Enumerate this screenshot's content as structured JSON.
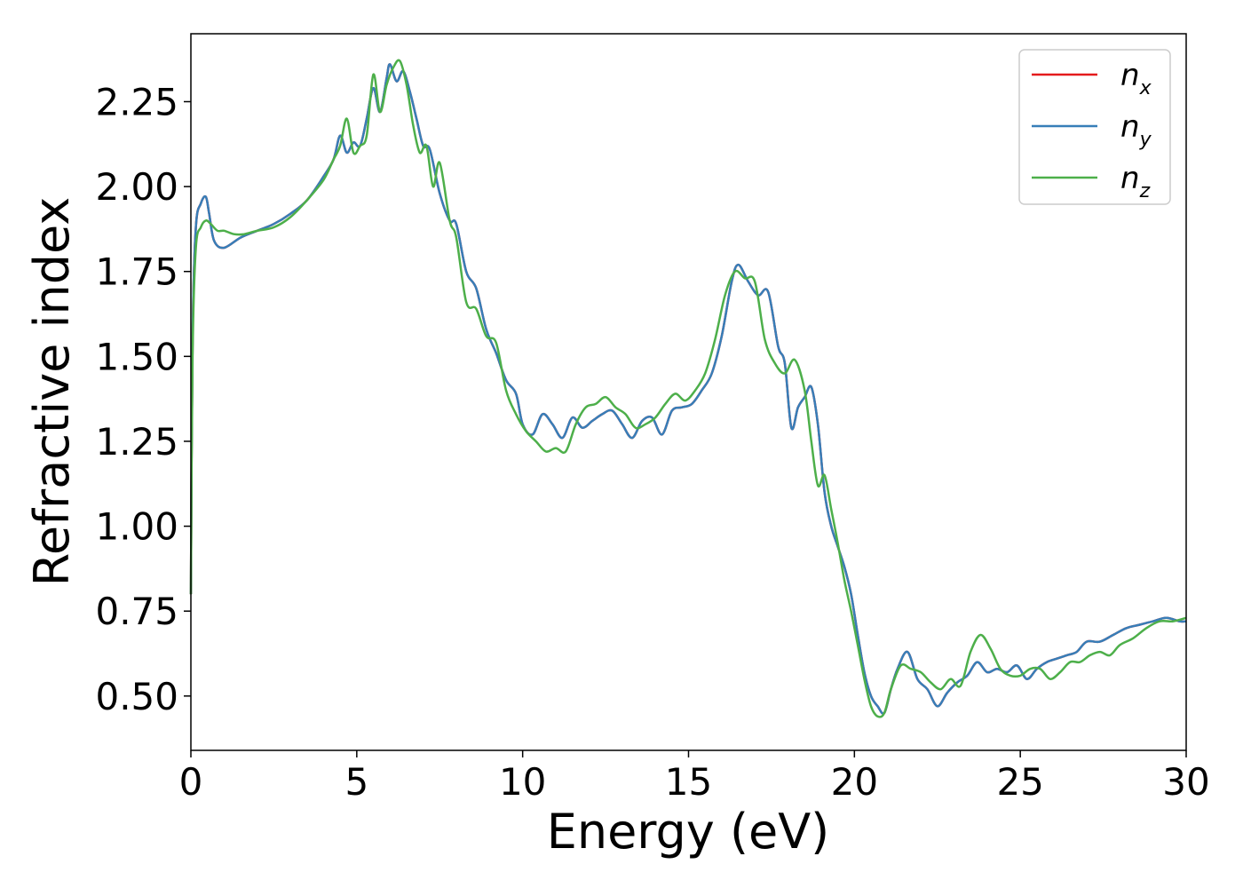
{
  "chart_data": {
    "type": "line",
    "xlabel": "Energy (eV)",
    "ylabel": "Refractive index",
    "xlim": [
      0,
      30
    ],
    "ylim": [
      0.34,
      2.45
    ],
    "xticks": [
      0,
      5,
      10,
      15,
      20,
      25,
      30
    ],
    "xtick_labels": [
      "0",
      "5",
      "10",
      "15",
      "20",
      "25",
      "30"
    ],
    "yticks": [
      0.5,
      0.75,
      1.0,
      1.25,
      1.5,
      1.75,
      2.0,
      2.25
    ],
    "ytick_labels": [
      "0.50",
      "0.75",
      "1.00",
      "1.25",
      "1.50",
      "1.75",
      "2.00",
      "2.25"
    ],
    "grid": false,
    "legend_position": "top-right",
    "series": [
      {
        "name": "n_x",
        "label_main": "n",
        "label_sub": "x",
        "color": "#e41a1c",
        "x": [
          0,
          0.05,
          0.15,
          0.3,
          0.45,
          0.55,
          0.7,
          1.0,
          1.5,
          2.0,
          2.5,
          3.0,
          3.5,
          4.0,
          4.3,
          4.5,
          4.7,
          4.9,
          5.1,
          5.3,
          5.5,
          5.7,
          5.9,
          6.0,
          6.2,
          6.4,
          6.6,
          6.8,
          7.0,
          7.2,
          7.5,
          7.8,
          8.0,
          8.3,
          8.6,
          8.9,
          9.2,
          9.5,
          9.8,
          10.0,
          10.3,
          10.6,
          10.9,
          11.2,
          11.5,
          11.8,
          12.1,
          12.4,
          12.7,
          13.0,
          13.3,
          13.6,
          13.9,
          14.2,
          14.5,
          14.8,
          15.1,
          15.4,
          15.7,
          16.0,
          16.3,
          16.5,
          16.8,
          17.1,
          17.4,
          17.7,
          17.9,
          18.1,
          18.3,
          18.5,
          18.7,
          18.9,
          19.1,
          19.3,
          19.5,
          19.7,
          19.9,
          20.1,
          20.3,
          20.5,
          20.7,
          20.9,
          21.1,
          21.3,
          21.6,
          21.9,
          22.2,
          22.5,
          22.8,
          23.1,
          23.4,
          23.7,
          24.0,
          24.3,
          24.6,
          24.9,
          25.2,
          25.5,
          25.8,
          26.1,
          26.4,
          26.7,
          27.0,
          27.4,
          27.8,
          28.2,
          28.6,
          29.0,
          29.4,
          29.8,
          30.0
        ],
        "values": [
          0.8,
          1.55,
          1.88,
          1.95,
          1.97,
          1.92,
          1.84,
          1.82,
          1.85,
          1.87,
          1.89,
          1.92,
          1.96,
          2.03,
          2.08,
          2.15,
          2.1,
          2.13,
          2.12,
          2.2,
          2.29,
          2.22,
          2.32,
          2.36,
          2.31,
          2.34,
          2.28,
          2.2,
          2.12,
          2.11,
          1.98,
          1.9,
          1.89,
          1.75,
          1.7,
          1.58,
          1.51,
          1.43,
          1.39,
          1.3,
          1.27,
          1.33,
          1.3,
          1.26,
          1.32,
          1.29,
          1.31,
          1.33,
          1.34,
          1.3,
          1.26,
          1.31,
          1.32,
          1.27,
          1.34,
          1.35,
          1.36,
          1.4,
          1.45,
          1.56,
          1.72,
          1.77,
          1.72,
          1.68,
          1.69,
          1.53,
          1.48,
          1.29,
          1.35,
          1.38,
          1.41,
          1.3,
          1.1,
          1.0,
          0.94,
          0.88,
          0.8,
          0.68,
          0.57,
          0.5,
          0.47,
          0.45,
          0.52,
          0.58,
          0.63,
          0.55,
          0.52,
          0.47,
          0.51,
          0.54,
          0.56,
          0.6,
          0.57,
          0.58,
          0.57,
          0.59,
          0.55,
          0.58,
          0.6,
          0.61,
          0.62,
          0.63,
          0.66,
          0.66,
          0.68,
          0.7,
          0.71,
          0.72,
          0.73,
          0.72,
          0.72
        ]
      },
      {
        "name": "n_y",
        "label_main": "n",
        "label_sub": "y",
        "color": "#377eb8",
        "x": [
          0,
          0.05,
          0.15,
          0.3,
          0.45,
          0.55,
          0.7,
          1.0,
          1.5,
          2.0,
          2.5,
          3.0,
          3.5,
          4.0,
          4.3,
          4.5,
          4.7,
          4.9,
          5.1,
          5.3,
          5.5,
          5.7,
          5.9,
          6.0,
          6.2,
          6.4,
          6.6,
          6.8,
          7.0,
          7.2,
          7.5,
          7.8,
          8.0,
          8.3,
          8.6,
          8.9,
          9.2,
          9.5,
          9.8,
          10.0,
          10.3,
          10.6,
          10.9,
          11.2,
          11.5,
          11.8,
          12.1,
          12.4,
          12.7,
          13.0,
          13.3,
          13.6,
          13.9,
          14.2,
          14.5,
          14.8,
          15.1,
          15.4,
          15.7,
          16.0,
          16.3,
          16.5,
          16.8,
          17.1,
          17.4,
          17.7,
          17.9,
          18.1,
          18.3,
          18.5,
          18.7,
          18.9,
          19.1,
          19.3,
          19.5,
          19.7,
          19.9,
          20.1,
          20.3,
          20.5,
          20.7,
          20.9,
          21.1,
          21.3,
          21.6,
          21.9,
          22.2,
          22.5,
          22.8,
          23.1,
          23.4,
          23.7,
          24.0,
          24.3,
          24.6,
          24.9,
          25.2,
          25.5,
          25.8,
          26.1,
          26.4,
          26.7,
          27.0,
          27.4,
          27.8,
          28.2,
          28.6,
          29.0,
          29.4,
          29.8,
          30.0
        ],
        "values": [
          0.8,
          1.55,
          1.88,
          1.95,
          1.97,
          1.92,
          1.84,
          1.82,
          1.85,
          1.87,
          1.89,
          1.92,
          1.96,
          2.03,
          2.08,
          2.15,
          2.1,
          2.13,
          2.12,
          2.2,
          2.29,
          2.22,
          2.32,
          2.36,
          2.31,
          2.34,
          2.28,
          2.2,
          2.12,
          2.11,
          1.98,
          1.9,
          1.89,
          1.75,
          1.7,
          1.58,
          1.51,
          1.43,
          1.39,
          1.3,
          1.27,
          1.33,
          1.3,
          1.26,
          1.32,
          1.29,
          1.31,
          1.33,
          1.34,
          1.3,
          1.26,
          1.31,
          1.32,
          1.27,
          1.34,
          1.35,
          1.36,
          1.4,
          1.45,
          1.56,
          1.72,
          1.77,
          1.72,
          1.68,
          1.69,
          1.53,
          1.48,
          1.29,
          1.35,
          1.38,
          1.41,
          1.3,
          1.1,
          1.0,
          0.94,
          0.88,
          0.8,
          0.68,
          0.57,
          0.5,
          0.47,
          0.45,
          0.52,
          0.58,
          0.63,
          0.55,
          0.52,
          0.47,
          0.51,
          0.54,
          0.56,
          0.6,
          0.57,
          0.58,
          0.57,
          0.59,
          0.55,
          0.58,
          0.6,
          0.61,
          0.62,
          0.63,
          0.66,
          0.66,
          0.68,
          0.7,
          0.71,
          0.72,
          0.73,
          0.72,
          0.72
        ]
      },
      {
        "name": "n_z",
        "label_main": "n",
        "label_sub": "z",
        "color": "#4daf4a",
        "x": [
          0,
          0.05,
          0.15,
          0.3,
          0.45,
          0.6,
          0.8,
          1.0,
          1.3,
          1.6,
          2.0,
          2.5,
          3.0,
          3.5,
          4.0,
          4.3,
          4.5,
          4.7,
          4.9,
          5.1,
          5.3,
          5.5,
          5.7,
          5.9,
          6.1,
          6.3,
          6.5,
          6.7,
          6.9,
          7.1,
          7.3,
          7.5,
          7.8,
          8.0,
          8.3,
          8.6,
          8.9,
          9.2,
          9.5,
          9.8,
          10.1,
          10.4,
          10.7,
          11.0,
          11.3,
          11.6,
          11.9,
          12.2,
          12.5,
          12.8,
          13.1,
          13.4,
          13.7,
          14.0,
          14.3,
          14.6,
          14.9,
          15.2,
          15.5,
          15.8,
          16.1,
          16.4,
          16.7,
          17.0,
          17.3,
          17.6,
          17.9,
          18.2,
          18.5,
          18.7,
          18.9,
          19.1,
          19.3,
          19.5,
          19.7,
          19.9,
          20.1,
          20.3,
          20.5,
          20.7,
          20.9,
          21.1,
          21.4,
          21.7,
          22.0,
          22.3,
          22.6,
          22.9,
          23.2,
          23.5,
          23.8,
          24.1,
          24.4,
          24.7,
          25.0,
          25.3,
          25.6,
          25.9,
          26.2,
          26.5,
          26.8,
          27.1,
          27.4,
          27.7,
          28.0,
          28.4,
          28.8,
          29.2,
          29.6,
          30.0
        ],
        "values": [
          0.8,
          1.5,
          1.82,
          1.88,
          1.9,
          1.89,
          1.87,
          1.87,
          1.86,
          1.86,
          1.87,
          1.88,
          1.91,
          1.96,
          2.02,
          2.08,
          2.12,
          2.2,
          2.1,
          2.12,
          2.15,
          2.33,
          2.22,
          2.3,
          2.35,
          2.37,
          2.3,
          2.18,
          2.1,
          2.12,
          2.0,
          2.07,
          1.9,
          1.85,
          1.66,
          1.64,
          1.56,
          1.54,
          1.4,
          1.33,
          1.28,
          1.25,
          1.22,
          1.23,
          1.22,
          1.3,
          1.35,
          1.36,
          1.38,
          1.35,
          1.33,
          1.29,
          1.3,
          1.32,
          1.36,
          1.39,
          1.37,
          1.4,
          1.45,
          1.55,
          1.68,
          1.75,
          1.73,
          1.72,
          1.55,
          1.48,
          1.45,
          1.49,
          1.4,
          1.25,
          1.12,
          1.15,
          1.05,
          0.95,
          0.84,
          0.75,
          0.65,
          0.55,
          0.47,
          0.44,
          0.45,
          0.52,
          0.59,
          0.58,
          0.57,
          0.54,
          0.52,
          0.55,
          0.53,
          0.63,
          0.68,
          0.64,
          0.58,
          0.56,
          0.56,
          0.58,
          0.58,
          0.55,
          0.57,
          0.6,
          0.6,
          0.62,
          0.63,
          0.62,
          0.65,
          0.67,
          0.7,
          0.72,
          0.72,
          0.73
        ]
      }
    ]
  }
}
